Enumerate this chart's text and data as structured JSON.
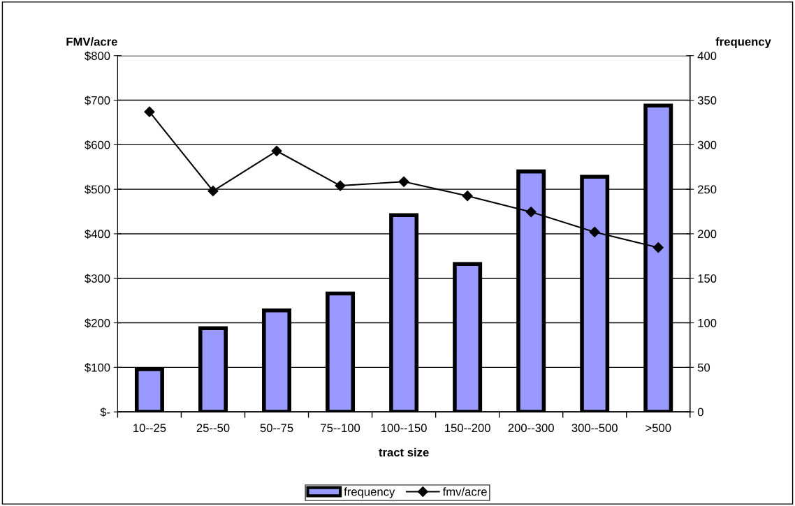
{
  "chart_data": {
    "type": "bar",
    "xlabel": "tract size",
    "ylabel": "FMV/acre",
    "y2label": "frequency",
    "categories": [
      "10--25",
      "25--50",
      "50--75",
      "75--100",
      "100--150",
      "150--200",
      "200--300",
      "300--500",
      ">500"
    ],
    "series": [
      {
        "name": "frequency",
        "axis": "y2",
        "color": "#9999ff",
        "values": [
          48,
          94,
          114,
          133,
          221,
          166,
          270,
          264,
          344
        ]
      },
      {
        "name": "fmv/acre",
        "type": "line",
        "color": "#000000",
        "marker": "diamond",
        "values": [
          674,
          496,
          586,
          508,
          517,
          485,
          449,
          404,
          369
        ]
      }
    ],
    "ylim": [
      0,
      800
    ],
    "yticks": [
      {
        "value": 0,
        "label": "$-"
      },
      {
        "value": 100,
        "label": "$100"
      },
      {
        "value": 200,
        "label": "$200"
      },
      {
        "value": 300,
        "label": "$300"
      },
      {
        "value": 400,
        "label": "$400"
      },
      {
        "value": 500,
        "label": "$500"
      },
      {
        "value": 600,
        "label": "$600"
      },
      {
        "value": 700,
        "label": "$700"
      },
      {
        "value": 800,
        "label": "$800"
      }
    ],
    "y2lim": [
      0,
      400
    ],
    "y2ticks": [
      0,
      50,
      100,
      150,
      200,
      250,
      300,
      350,
      400
    ],
    "grid": "y",
    "legend": "bottom"
  }
}
